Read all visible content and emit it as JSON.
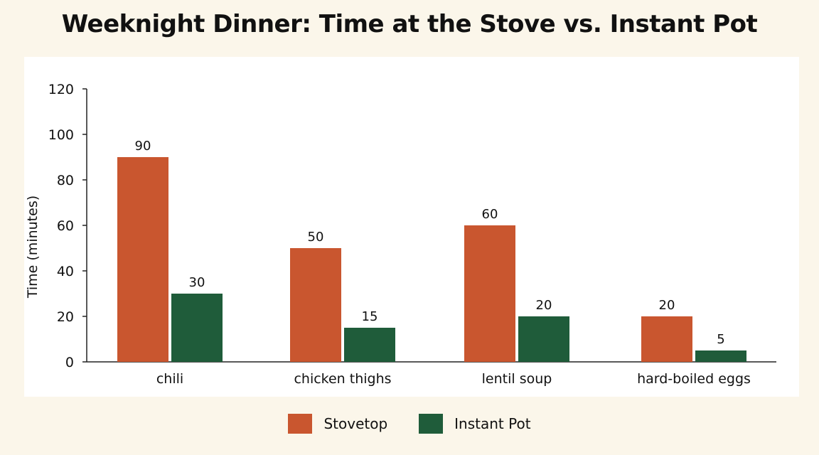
{
  "chart_data": {
    "type": "bar",
    "title": "Weeknight Dinner: Time at the Stove vs. Instant Pot",
    "ylabel": "Time (minutes)",
    "xlabel": "",
    "ylim": [
      0,
      120
    ],
    "yticks": [
      0,
      20,
      40,
      60,
      80,
      100,
      120
    ],
    "categories": [
      "chili",
      "chicken thighs",
      "lentil soup",
      "hard-boiled eggs"
    ],
    "series": [
      {
        "name": "Stovetop",
        "color": "#c9562f",
        "values": [
          90,
          50,
          60,
          20
        ]
      },
      {
        "name": "Instant Pot",
        "color": "#1f5c3a",
        "values": [
          30,
          15,
          20,
          5
        ]
      }
    ],
    "legend_position": "bottom-center",
    "grid": false
  }
}
